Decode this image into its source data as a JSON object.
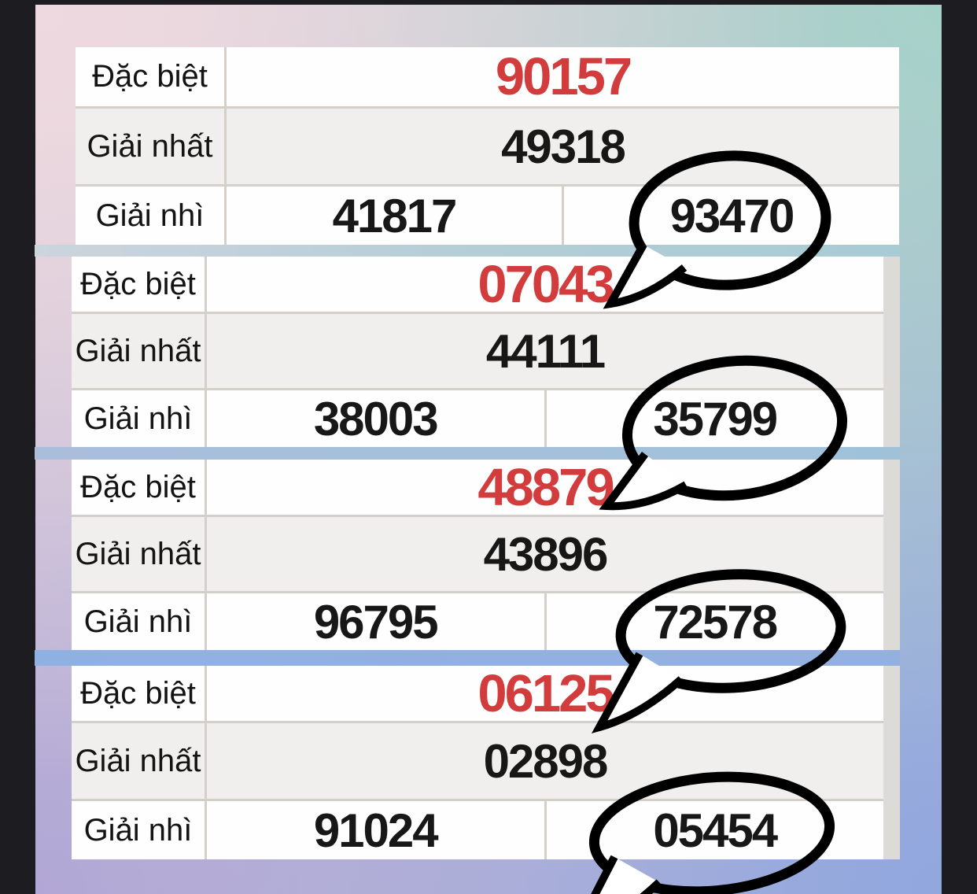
{
  "results": {
    "tables": [
      {
        "name": "result-table-1",
        "rows": [
          {
            "label": "Đặc biệt",
            "special": true,
            "values": [
              "90157"
            ],
            "circled": -1
          },
          {
            "label": "Giải nhất",
            "special": false,
            "values": [
              "49318"
            ],
            "circled": -1
          },
          {
            "label": "Giải nhì",
            "special": false,
            "values": [
              "41817",
              "93470"
            ],
            "circled": 1
          }
        ]
      },
      {
        "name": "result-table-2",
        "rows": [
          {
            "label": "Đặc biệt",
            "special": true,
            "values": [
              "07043"
            ],
            "circled": -1
          },
          {
            "label": "Giải nhất",
            "special": false,
            "values": [
              "44111"
            ],
            "circled": -1
          },
          {
            "label": "Giải nhì",
            "special": false,
            "values": [
              "38003",
              "35799"
            ],
            "circled": 1
          }
        ]
      },
      {
        "name": "result-table-3",
        "rows": [
          {
            "label": "Đặc biệt",
            "special": true,
            "values": [
              "48879"
            ],
            "circled": -1
          },
          {
            "label": "Giải nhất",
            "special": false,
            "values": [
              "43896"
            ],
            "circled": -1
          },
          {
            "label": "Giải nhì",
            "special": false,
            "values": [
              "96795",
              "72578"
            ],
            "circled": 1
          }
        ]
      },
      {
        "name": "result-table-4",
        "rows": [
          {
            "label": "Đặc biệt",
            "special": true,
            "values": [
              "06125"
            ],
            "circled": -1
          },
          {
            "label": "Giải nhất",
            "special": false,
            "values": [
              "02898"
            ],
            "circled": -1
          },
          {
            "label": "Giải nhì",
            "special": false,
            "values": [
              "91024",
              "05454"
            ],
            "circled": 1
          }
        ]
      }
    ],
    "circled_numbers": [
      "93470",
      "35799",
      "72578",
      "05454"
    ],
    "colors": {
      "special_number": "#d23c3c",
      "number": "#171717",
      "label_text": "#131313",
      "annotation_ink": "#000000",
      "separator_bar_1": "#b3cdd6",
      "separator_bar_2": "#a4c0da",
      "separator_bar_3": "#91b1e0",
      "frame": "#1d1d21"
    }
  }
}
